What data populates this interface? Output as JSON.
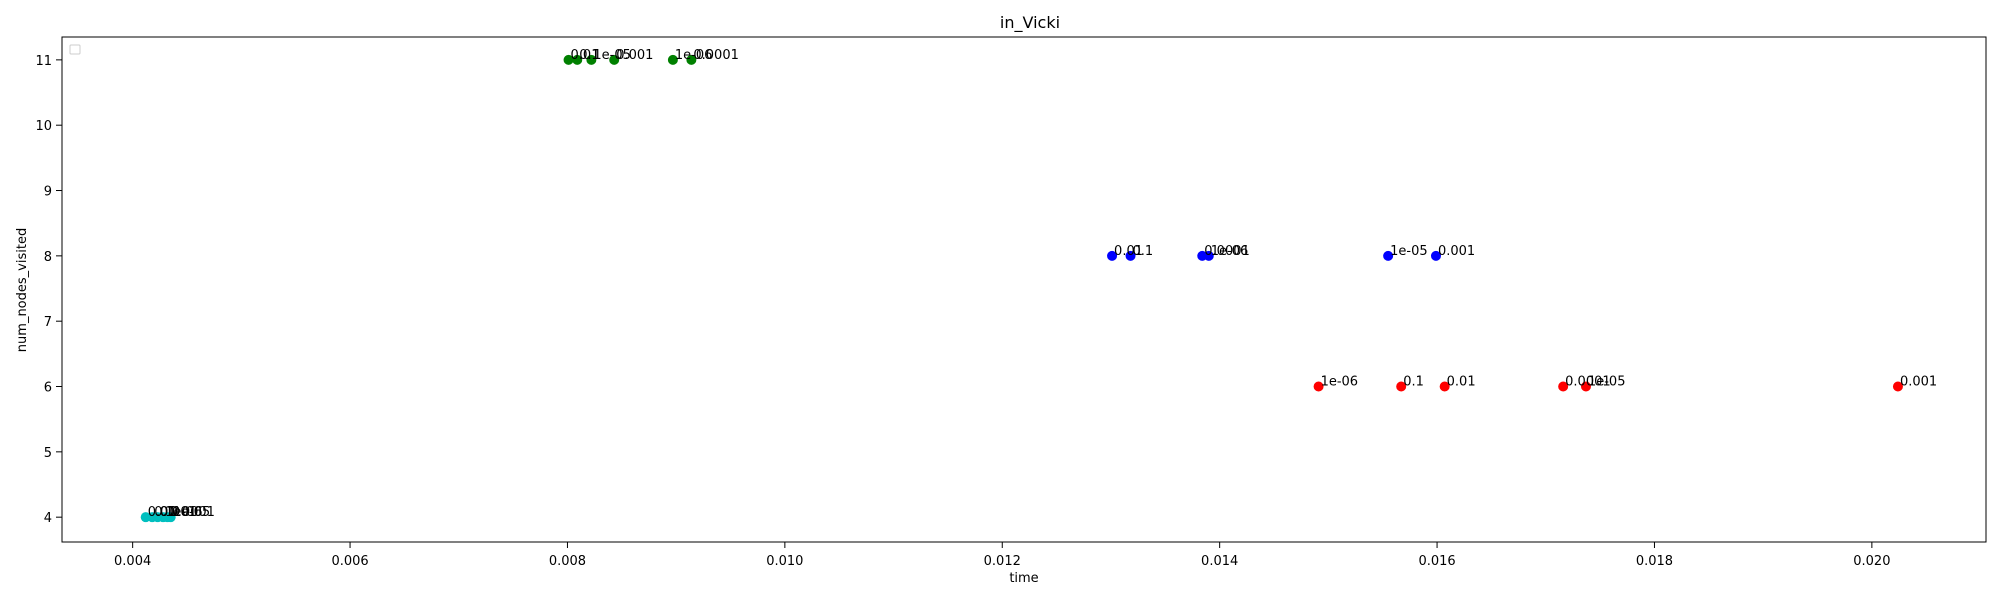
{
  "chart_data": {
    "type": "scatter",
    "title": "in_Vicki",
    "xlabel": "time",
    "ylabel": "num_nodes_visited",
    "xlim": [
      0.00335,
      0.02105
    ],
    "ylim": [
      3.62,
      11.35
    ],
    "xticks": [
      0.004,
      0.006,
      0.008,
      0.01,
      0.012,
      0.014,
      0.016,
      0.018,
      0.02
    ],
    "xtick_labels": [
      "0.004",
      "0.006",
      "0.008",
      "0.010",
      "0.012",
      "0.014",
      "0.016",
      "0.018",
      "0.020"
    ],
    "yticks": [
      4,
      5,
      6,
      7,
      8,
      9,
      10,
      11
    ],
    "ytick_labels": [
      "4",
      "5",
      "6",
      "7",
      "8",
      "9",
      "10",
      "11"
    ],
    "grid": false,
    "legend": {
      "placement": "upper-left",
      "entries": []
    },
    "series": [
      {
        "color": "#008000",
        "points": [
          {
            "x": 0.00801,
            "y": 11,
            "label": "0.01"
          },
          {
            "x": 0.00809,
            "y": 11,
            "label": "0.1"
          },
          {
            "x": 0.00822,
            "y": 11,
            "label": "1e-05"
          },
          {
            "x": 0.00843,
            "y": 11,
            "label": "0.001"
          },
          {
            "x": 0.00897,
            "y": 11,
            "label": "1e-06"
          },
          {
            "x": 0.00914,
            "y": 11,
            "label": "0.0001"
          }
        ]
      },
      {
        "color": "#0000ff",
        "points": [
          {
            "x": 0.01301,
            "y": 8,
            "label": "0.01"
          },
          {
            "x": 0.01318,
            "y": 8,
            "label": "0.1"
          },
          {
            "x": 0.01384,
            "y": 8,
            "label": "0.0001"
          },
          {
            "x": 0.0139,
            "y": 8,
            "label": "1e-06"
          },
          {
            "x": 0.01555,
            "y": 8,
            "label": "1e-05"
          },
          {
            "x": 0.01599,
            "y": 8,
            "label": "0.001"
          }
        ]
      },
      {
        "color": "#ff0000",
        "points": [
          {
            "x": 0.01491,
            "y": 6,
            "label": "1e-06"
          },
          {
            "x": 0.01567,
            "y": 6,
            "label": "0.1"
          },
          {
            "x": 0.01607,
            "y": 6,
            "label": "0.01"
          },
          {
            "x": 0.01716,
            "y": 6,
            "label": "0.0001"
          },
          {
            "x": 0.01737,
            "y": 6,
            "label": "1e-05"
          },
          {
            "x": 0.02024,
            "y": 6,
            "label": "0.001"
          }
        ]
      },
      {
        "color": "#00bfbf",
        "points": [
          {
            "x": 0.00412,
            "y": 4,
            "label": "0.01"
          },
          {
            "x": 0.00418,
            "y": 4,
            "label": "0.1"
          },
          {
            "x": 0.00423,
            "y": 4,
            "label": "0.001"
          },
          {
            "x": 0.00428,
            "y": 4,
            "label": "1e-06"
          },
          {
            "x": 0.00432,
            "y": 4,
            "label": "0.0001"
          },
          {
            "x": 0.00435,
            "y": 4,
            "label": "1e-05"
          }
        ]
      }
    ]
  }
}
